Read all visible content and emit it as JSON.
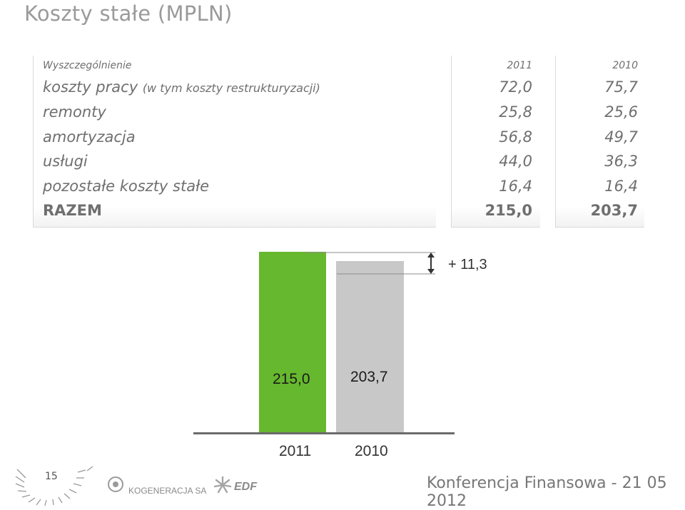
{
  "slide": {
    "title": "Koszty stałe (MPLN)"
  },
  "table": {
    "header": {
      "label": "Wyszczególnienie",
      "col_2011": "2011",
      "col_2010": "2010"
    },
    "rows": [
      {
        "label": "koszty pracy",
        "note": "(w tym koszty restrukturyzacji)",
        "v2011": "72,0",
        "v2010": "75,7"
      },
      {
        "label": "remonty",
        "v2011": "25,8",
        "v2010": "25,6"
      },
      {
        "label": "amortyzacja",
        "v2011": "56,8",
        "v2010": "49,7"
      },
      {
        "label": "usługi",
        "v2011": "44,0",
        "v2010": "36,3"
      },
      {
        "label": "pozostałe koszty stałe",
        "v2011": "16,4",
        "v2010": "16,4"
      },
      {
        "label": "RAZEM",
        "v2011": "215,0",
        "v2010": "203,7"
      }
    ]
  },
  "chart_data": {
    "type": "bar",
    "categories": [
      "2011",
      "2010"
    ],
    "values": [
      215.0,
      203.7
    ],
    "value_labels": [
      "215,0",
      "203,7"
    ],
    "colors": [
      "#66b82e",
      "#c8c8c8"
    ],
    "difference_label": "+ 11,3",
    "title": "",
    "xlabel": "",
    "ylabel": ""
  },
  "footer": {
    "page_number": "15",
    "logo_kogeneracja": "KOGENERACJA SA",
    "logo_edf": "EDF",
    "conference": "Konferencja Finansowa - 21 05 2012"
  }
}
